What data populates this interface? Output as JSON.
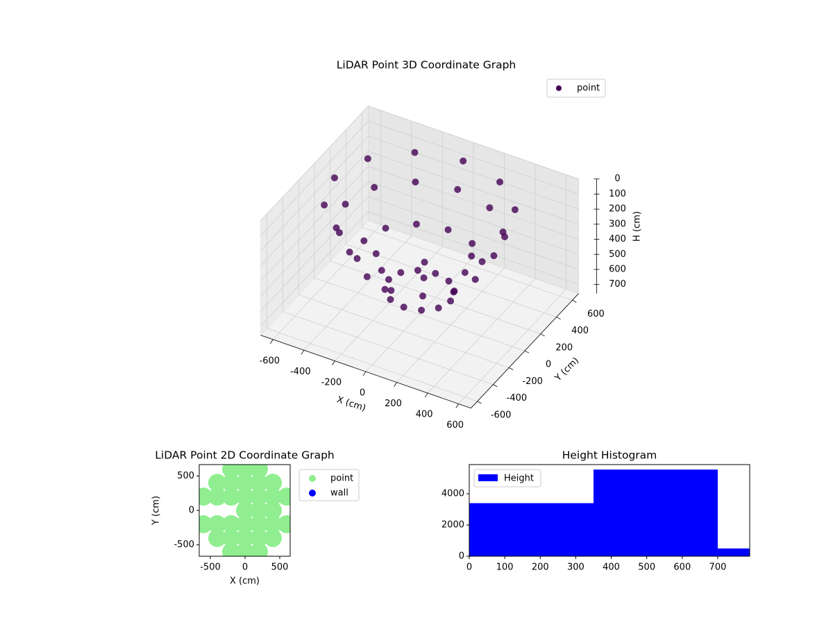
{
  "chart_data": [
    {
      "type": "scatter3d",
      "title": "LiDAR Point 3D Coordinate Graph",
      "xlabel": "X (cm)",
      "ylabel": "Y (cm)",
      "zlabel": "H (cm)",
      "legend": "upper right",
      "grid": true,
      "xlim": [
        -680,
        680
      ],
      "ylim": [
        -680,
        680
      ],
      "zlim": [
        0,
        760
      ],
      "z_inverted": true,
      "xticks": [
        -600,
        -400,
        -200,
        0,
        200,
        400,
        600
      ],
      "yticks": [
        -600,
        -400,
        -200,
        0,
        200,
        400,
        600
      ],
      "zticks": [
        0,
        100,
        200,
        300,
        400,
        500,
        600,
        700
      ],
      "series": [
        {
          "name": "point",
          "color": "#440154",
          "x": [
            550,
            476,
            275,
            0,
            -275,
            -476,
            -550,
            -476,
            -275,
            0,
            275,
            476,
            480,
            416,
            240,
            0,
            -240,
            -416,
            -480,
            -416,
            -240,
            0,
            240,
            416,
            360,
            312,
            180,
            0,
            -180,
            -312,
            -360,
            -312,
            -180,
            0,
            180,
            312,
            200,
            173,
            100,
            0,
            -100,
            -173,
            -200,
            -173,
            -100,
            0,
            100,
            173
          ],
          "y": [
            0,
            275,
            476,
            550,
            476,
            275,
            0,
            -275,
            -476,
            -550,
            -476,
            -275,
            0,
            240,
            416,
            480,
            416,
            240,
            0,
            -240,
            -416,
            -480,
            -416,
            -240,
            0,
            180,
            312,
            360,
            312,
            180,
            0,
            -180,
            -312,
            -360,
            -312,
            -180,
            0,
            100,
            173,
            200,
            173,
            100,
            0,
            -100,
            -173,
            -200,
            -173,
            -100
          ],
          "z": [
            50,
            50,
            50,
            50,
            50,
            50,
            50,
            50,
            50,
            50,
            50,
            50,
            200,
            200,
            200,
            200,
            200,
            200,
            200,
            200,
            200,
            200,
            200,
            200,
            400,
            400,
            400,
            400,
            400,
            400,
            400,
            400,
            400,
            400,
            400,
            400,
            600,
            600,
            600,
            600,
            600,
            600,
            600,
            600,
            600,
            600,
            600,
            600
          ]
        }
      ]
    },
    {
      "type": "scatter",
      "title": "LiDAR Point 2D Coordinate Graph",
      "xlabel": "X (cm)",
      "ylabel": "Y (cm)",
      "legend": "outside right",
      "xlim": [
        -660,
        650
      ],
      "ylim": [
        -665,
        665
      ],
      "xticks": [
        -500,
        0,
        500
      ],
      "yticks": [
        -500,
        0,
        500
      ],
      "series": [
        {
          "name": "point",
          "color": "#90ee90",
          "x": [
            -200,
            0,
            200,
            -200,
            0,
            200,
            -400,
            -200,
            0,
            200,
            400,
            -400,
            -200,
            0,
            200,
            400,
            -600,
            -400,
            -200,
            0,
            200,
            400,
            600,
            -600,
            -400,
            -200,
            0,
            200,
            400,
            600,
            0,
            200,
            400
          ],
          "y": [
            600,
            600,
            600,
            -600,
            -600,
            -600,
            400,
            400,
            400,
            400,
            400,
            -400,
            -400,
            -400,
            -400,
            -400,
            200,
            200,
            200,
            200,
            200,
            200,
            200,
            -200,
            -200,
            -200,
            -200,
            -200,
            -200,
            -200,
            0,
            0,
            0
          ]
        },
        {
          "name": "wall",
          "color": "#0000ff",
          "x": [],
          "y": []
        }
      ]
    },
    {
      "type": "histogram",
      "title": "Height Histogram",
      "name": "Height",
      "color": "#0000ff",
      "legend": "upper left",
      "bins": [
        0,
        350,
        700,
        1050
      ],
      "values": [
        3400,
        5550,
        500
      ],
      "xlim": [
        0,
        790
      ],
      "ylim": [
        0,
        5870
      ],
      "xticks": [
        0,
        100,
        200,
        300,
        400,
        500,
        600,
        700
      ],
      "yticks": [
        0,
        2000,
        4000
      ]
    }
  ]
}
